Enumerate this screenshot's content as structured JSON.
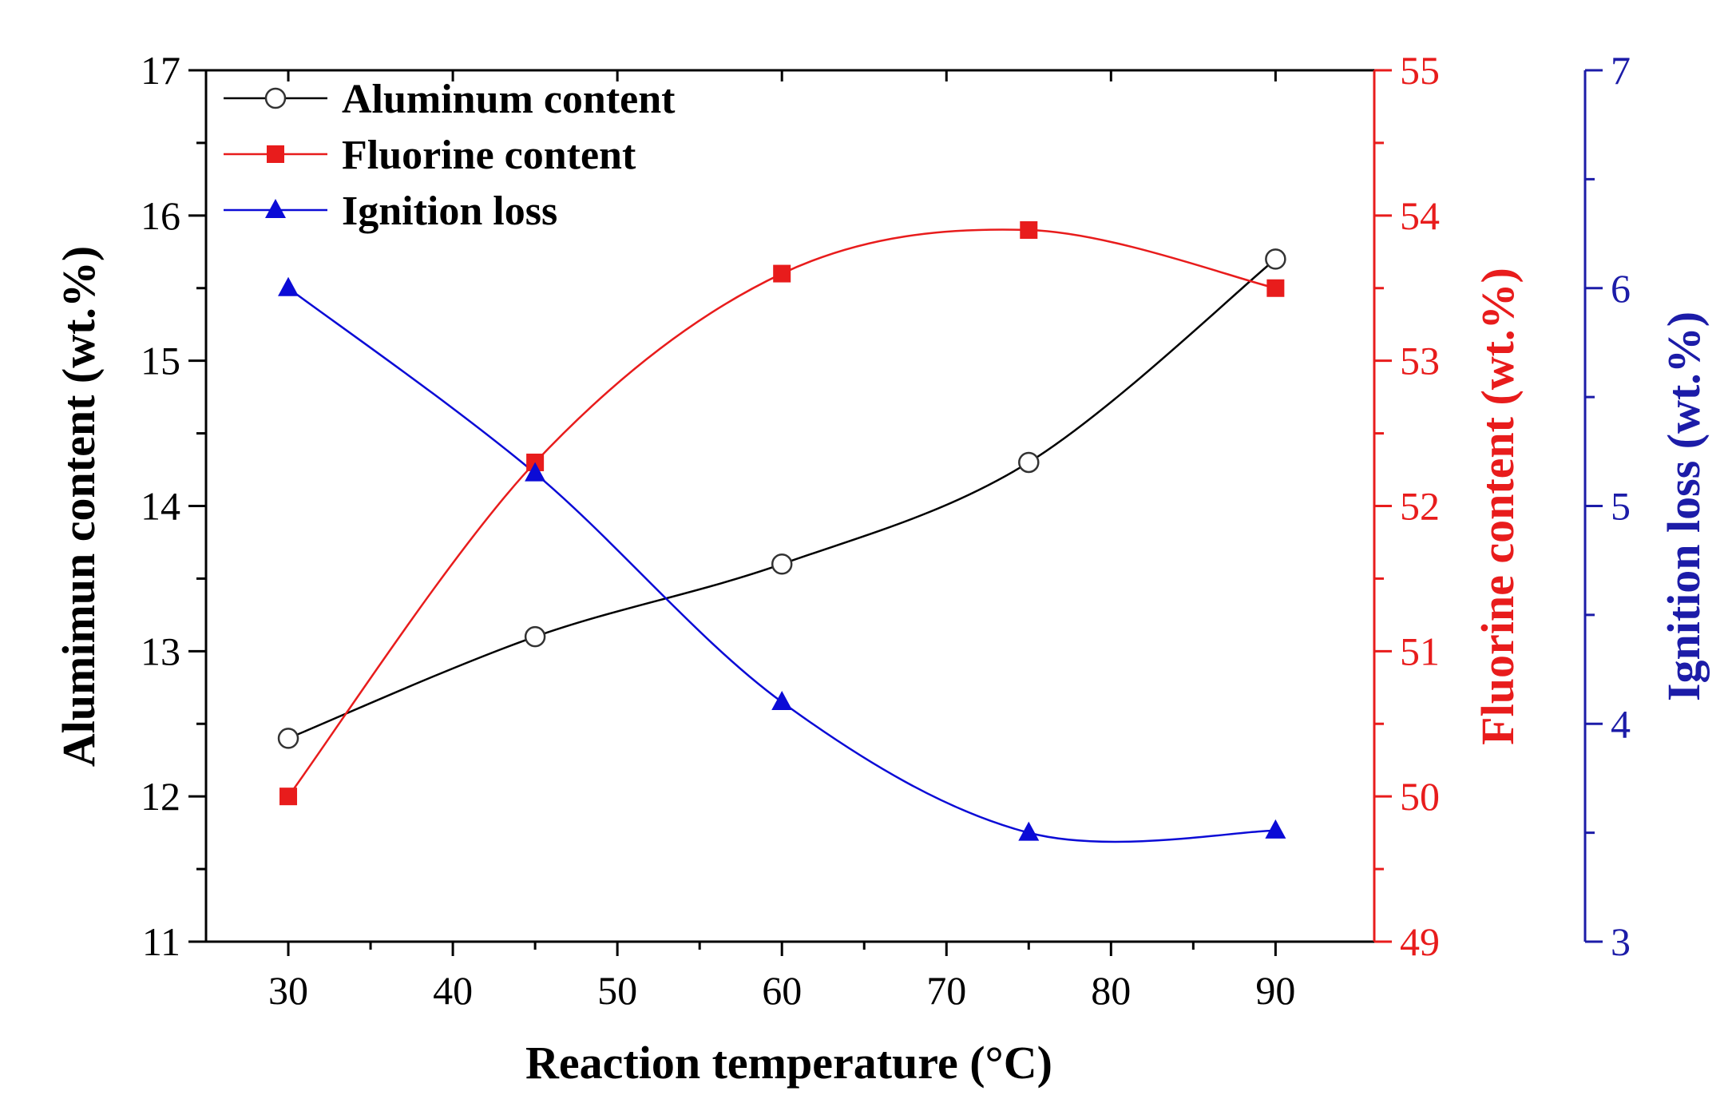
{
  "chart_data": {
    "type": "line",
    "title": "",
    "xlabel": "Reaction temperature (°C)",
    "xlim": [
      25,
      96
    ],
    "xticks": [
      30,
      40,
      50,
      60,
      70,
      80,
      90
    ],
    "x": [
      30,
      45,
      60,
      75,
      90
    ],
    "grid": false,
    "legend_position": "top-left",
    "axes": {
      "left": {
        "label": "Alumimun content (wt.%)",
        "ylim": [
          11,
          17
        ],
        "ticks": [
          11,
          12,
          13,
          14,
          15,
          16,
          17
        ],
        "color": "#000000"
      },
      "right1": {
        "label": "Fluorine content (wt.%)",
        "ylim": [
          49,
          55
        ],
        "ticks": [
          49,
          50,
          51,
          52,
          53,
          54,
          55
        ],
        "color": "#e81c1c"
      },
      "right2": {
        "label": "Ignition loss (wt.%)",
        "ylim": [
          3,
          7
        ],
        "ticks": [
          3,
          4,
          5,
          6,
          7
        ],
        "color": "#1c1ca8"
      }
    },
    "series": [
      {
        "name": "Aluminum content",
        "axis": "left",
        "marker": "circle-open",
        "color": "#000000",
        "values": [
          12.4,
          13.1,
          13.6,
          14.3,
          15.7
        ]
      },
      {
        "name": "Fluorine content",
        "axis": "right1",
        "marker": "square",
        "color": "#e81c1c",
        "values": [
          50.0,
          52.3,
          53.6,
          53.9,
          53.5
        ]
      },
      {
        "name": "Ignition loss",
        "axis": "right2",
        "marker": "triangle",
        "color": "#0b0bd6",
        "values": [
          6.0,
          5.15,
          4.1,
          3.5,
          3.51
        ]
      }
    ]
  }
}
